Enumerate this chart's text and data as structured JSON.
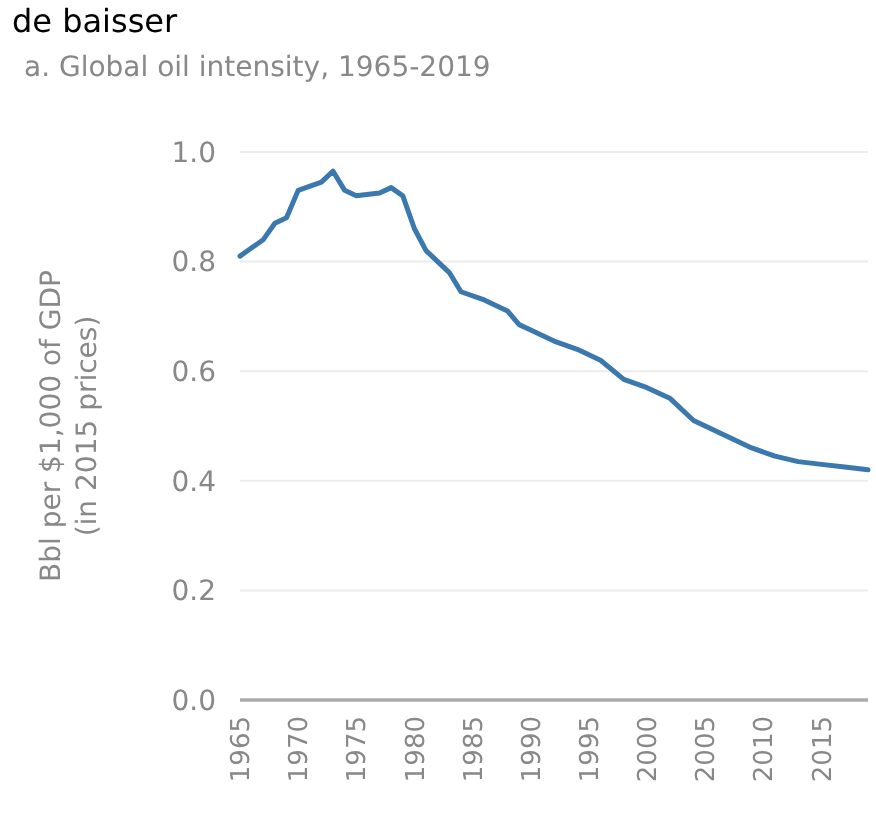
{
  "chart_data": {
    "type": "line",
    "title": "a. Global oil intensity, 1965-2019",
    "annotations": [
      "de baisser"
    ],
    "ylabel": "Bbl per $1,000 of GDP (in 2015 prices)",
    "x": [
      1965,
      1967,
      1968,
      1969,
      1970,
      1972,
      1973,
      1974,
      1975,
      1977,
      1978,
      1979,
      1980,
      1981,
      1982,
      1983,
      1984,
      1986,
      1987,
      1988,
      1989,
      1990,
      1992,
      1994,
      1996,
      1998,
      2000,
      2002,
      2004,
      2005,
      2007,
      2009,
      2011,
      2013,
      2015,
      2017,
      2019
    ],
    "series": [
      {
        "color": "#3b78ad",
        "values": [
          0.81,
          0.84,
          0.87,
          0.88,
          0.93,
          0.945,
          0.965,
          0.93,
          0.92,
          0.925,
          0.935,
          0.92,
          0.86,
          0.82,
          0.8,
          0.78,
          0.745,
          0.73,
          0.72,
          0.71,
          0.685,
          0.675,
          0.655,
          0.64,
          0.62,
          0.585,
          0.57,
          0.55,
          0.51,
          0.5,
          0.48,
          0.46,
          0.445,
          0.435,
          0.43,
          0.425,
          0.42
        ]
      }
    ],
    "xlim": [
      1965,
      2019
    ],
    "xticks": [
      1965,
      1970,
      1975,
      1980,
      1985,
      1990,
      1995,
      2000,
      2005,
      2010,
      2015
    ],
    "ylim": [
      0,
      1
    ],
    "yticks": [
      {
        "value": 0,
        "label": "0.0"
      },
      {
        "value": 0.2,
        "label": "0.2"
      },
      {
        "value": 0.4,
        "label": "0.4"
      },
      {
        "value": 0.6,
        "label": "0.6"
      },
      {
        "value": 0.8,
        "label": "0.8"
      },
      {
        "value": 1,
        "label": "1.0"
      }
    ],
    "grid": "y",
    "marker": "none",
    "line_style": "solid"
  }
}
